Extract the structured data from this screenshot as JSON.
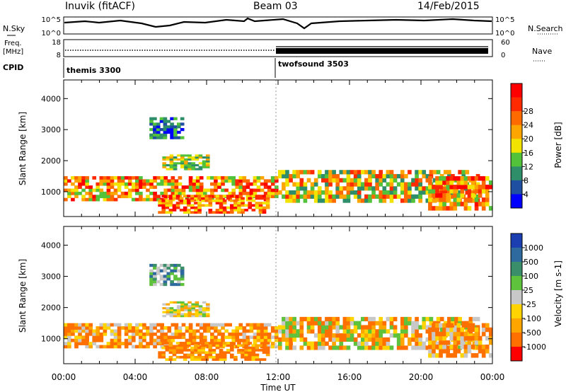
{
  "header": {
    "station": "Inuvik (fitACF)",
    "beam": "Beam 03",
    "date": "14/Feb/2015"
  },
  "noise_panel": {
    "left_label": "N.Sky",
    "right_label": "N.Search",
    "left_ticks": [
      "10^5",
      "10^0"
    ],
    "right_ticks": [
      "10^5",
      "10^0"
    ]
  },
  "freq_panel": {
    "left_label_1": "Freq.",
    "left_label_2": "[MHz]",
    "left_ticks": [
      "18",
      "8"
    ],
    "right_label": "Nave",
    "right_ticks": [
      "60",
      "0"
    ]
  },
  "cpid_panel": {
    "label": "CPID",
    "entries": [
      {
        "name": "themis 3300",
        "start": "00:00"
      },
      {
        "name": "twofsound 3503",
        "start": "12:00"
      }
    ]
  },
  "axes": {
    "x_ticks": [
      "00:00",
      "04:00",
      "08:00",
      "12:00",
      "16:00",
      "20:00",
      "00:00"
    ],
    "xlabel": "Time UT",
    "ylabel": "Slant Range [km]",
    "y_ticks": [
      "1000",
      "2000",
      "3000",
      "4000"
    ],
    "ylim": [
      200,
      4600
    ]
  },
  "chart_data": [
    {
      "type": "heatmap",
      "panel": "power",
      "xlabel": "Time UT",
      "ylabel": "Slant Range [km]",
      "ylim": [
        200,
        4600
      ],
      "x_ticks": [
        "00:00",
        "04:00",
        "08:00",
        "12:00",
        "16:00",
        "20:00",
        "00:00"
      ],
      "y_ticks": [
        1000,
        2000,
        3000,
        4000
      ],
      "colorbar": {
        "label": "Power [dB]",
        "ticks": [
          "4",
          "8",
          "12",
          "16",
          "20",
          "24",
          "28"
        ],
        "colors": [
          "#0000ff",
          "#1e4fa0",
          "#2f8e6a",
          "#52c23a",
          "#f2e400",
          "#ffa500",
          "#ff6a00",
          "#ff2a00",
          "#ff0000"
        ]
      }
    },
    {
      "type": "heatmap",
      "panel": "velocity",
      "xlabel": "Time UT",
      "ylabel": "Slant Range [km]",
      "ylim": [
        200,
        4600
      ],
      "x_ticks": [
        "00:00",
        "04:00",
        "08:00",
        "12:00",
        "16:00",
        "20:00",
        "00:00"
      ],
      "y_ticks": [
        1000,
        2000,
        3000,
        4000
      ],
      "colorbar": {
        "label": "Velocity [m s-1]",
        "ticks": [
          "1000",
          "500",
          "100",
          "25",
          "-25",
          "-100",
          "-500",
          "-1000"
        ],
        "colors": [
          "#1b3fb0",
          "#2e6a9e",
          "#3a8f6a",
          "#5fc23c",
          "#c8c8c8",
          "#ffd400",
          "#ffa500",
          "#ff7000",
          "#ff0000"
        ]
      }
    }
  ]
}
